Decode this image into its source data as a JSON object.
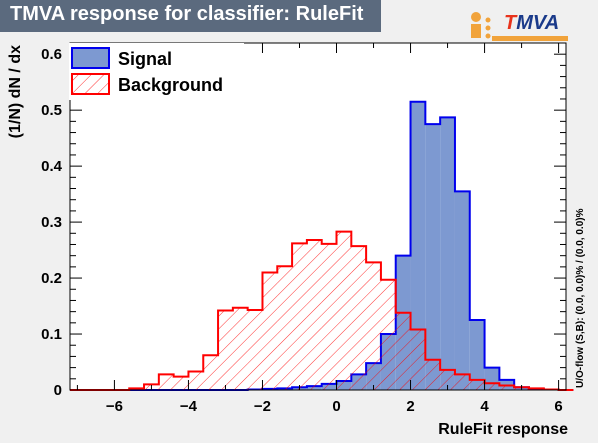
{
  "window": {
    "title": "TMVA response for classifier: RuleFit"
  },
  "logo": {
    "text_t": "T",
    "text_rest": "MVA"
  },
  "overflow_note": "U/O-flow (S,B): (0.0, 0.0)% / (0.0, 0.0)%",
  "colors": {
    "signal_fill": "#7d99d1",
    "signal_line": "#0000ee",
    "background_line": "#ff0000",
    "title_bg": "#5b6a7e"
  },
  "chart_data": {
    "type": "histogram",
    "xlabel": "RuleFit response",
    "ylabel": "(1/N)  dN  /  dx",
    "xlim": [
      -7.2,
      6.2
    ],
    "ylim": [
      0,
      0.62
    ],
    "bin_width": 0.4,
    "bin_start": -7.2,
    "xticks": [
      -6,
      -4,
      -2,
      0,
      2,
      4,
      6
    ],
    "yticks": [
      0,
      0.1,
      0.2,
      0.3,
      0.4,
      0.5,
      0.6
    ],
    "legend_position": "top-left",
    "series": [
      {
        "name": "Signal",
        "style": "filled",
        "values": [
          0,
          0,
          0,
          0,
          0,
          0,
          0,
          0,
          0,
          0,
          0,
          0,
          0.001,
          0.002,
          0.003,
          0.005,
          0.007,
          0.011,
          0.016,
          0.028,
          0.048,
          0.1,
          0.24,
          0.515,
          0.475,
          0.487,
          0.355,
          0.125,
          0.04,
          0.018,
          0.005,
          0.002,
          0.001,
          0
        ]
      },
      {
        "name": "Background",
        "style": "hatched",
        "values": [
          0,
          0,
          0,
          0,
          0.003,
          0.01,
          0.028,
          0.024,
          0.033,
          0.062,
          0.142,
          0.147,
          0.143,
          0.21,
          0.221,
          0.262,
          0.268,
          0.261,
          0.283,
          0.257,
          0.228,
          0.197,
          0.138,
          0.108,
          0.054,
          0.036,
          0.028,
          0.018,
          0.012,
          0.008,
          0.005,
          0.003,
          0.001,
          0
        ]
      }
    ]
  }
}
